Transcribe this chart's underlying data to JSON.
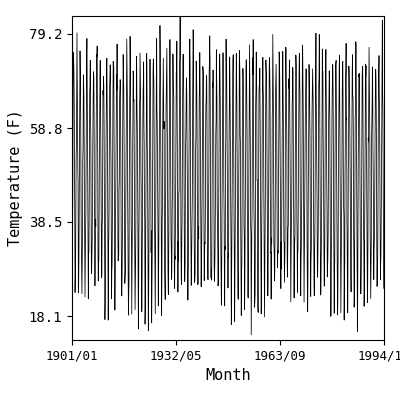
{
  "xlabel": "Month",
  "ylabel": "Temperature (F)",
  "yticks": [
    18.1,
    38.5,
    58.8,
    79.2
  ],
  "xtick_labels": [
    "1901/01",
    "1932/05",
    "1963/09",
    "1994/12"
  ],
  "xtick_positions": [
    1901.0,
    1932.333,
    1963.667,
    1994.917
  ],
  "year_start": 1901,
  "year_end": 1994,
  "summer_high": 73.5,
  "winter_low": 24.5,
  "amplitude": 24.5,
  "noise_std": 3.5,
  "decadal_amplitude": 5.0,
  "decadal_period": 30,
  "line_color": "#000000",
  "bg_color": "#ffffff",
  "linewidth": 0.55,
  "ylim": [
    13.0,
    83.0
  ],
  "xlim_start": 1901.0,
  "xlim_end": 1995.0
}
